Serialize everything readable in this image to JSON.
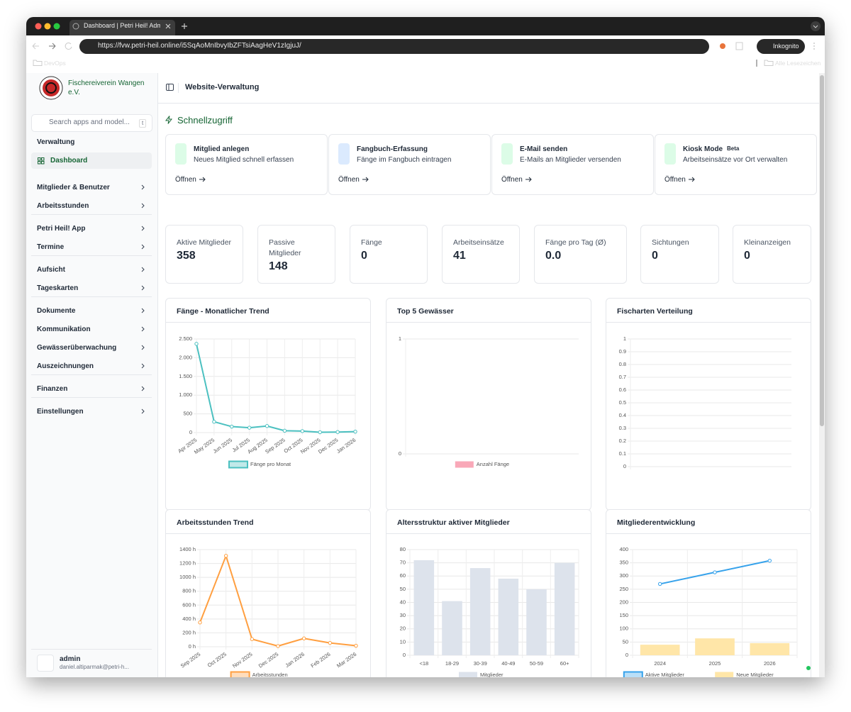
{
  "browser": {
    "tab_title": "Dashboard | Petri Heil! Admin",
    "url": "https://fvw.petri-heil.online/i5SqAoMnIbvyIbZFTsiAagHeV1zIgjuJ/",
    "incognito": "Inkognito",
    "bookmarks": [
      "DevOps"
    ],
    "all_bookmarks": "Alle Lesezeichen"
  },
  "sidebar": {
    "org_name": "Fischereiverein Wangen e.V.",
    "search_placeholder": "Search apps and model...",
    "search_shortcut": "t",
    "section": "Verwaltung",
    "active_item": "Dashboard",
    "groups": [
      [
        "Mitglieder & Benutzer",
        "Arbeitsstunden"
      ],
      [
        "Petri Heil! App",
        "Termine"
      ],
      [
        "Aufsicht",
        "Tageskarten"
      ],
      [
        "Dokumente",
        "Kommunikation",
        "Gewässerüberwachung",
        "Auszeichnungen"
      ],
      [
        "Finanzen"
      ],
      [
        "Einstellungen"
      ]
    ],
    "user": {
      "name": "admin",
      "email": "daniel.altiparmak@petri-h..."
    }
  },
  "header": {
    "title": "Website-Verwaltung"
  },
  "quick_access": {
    "title": "Schnellzugriff",
    "cards": [
      {
        "title": "Mitglied anlegen",
        "description": "Neues Mitglied schnell erfassen",
        "link": "Öffnen"
      },
      {
        "title": "Fangbuch-Erfassung",
        "description": "Fänge im Fangbuch eintragen",
        "link": "Öffnen"
      },
      {
        "title": "E-Mail senden",
        "description": "E-Mails an Mitglieder versenden",
        "link": "Öffnen"
      },
      {
        "title": "Kiosk Mode",
        "badge": "Beta",
        "description": "Arbeitseinsätze vor Ort verwalten",
        "link": "Öffnen"
      }
    ]
  },
  "stats": [
    {
      "label": "Aktive Mitglieder",
      "value": 358
    },
    {
      "label": "Passive Mitglieder",
      "value": 148
    },
    {
      "label": "Fänge",
      "value": 0
    },
    {
      "label": "Arbeitseinsätze",
      "value": 41
    },
    {
      "label": "Fänge pro Tag (Ø)",
      "value": "0.0"
    },
    {
      "label": "Sichtungen",
      "value": 0
    },
    {
      "label": "Kleinanzeigen",
      "value": 0
    }
  ],
  "chart_data": [
    {
      "type": "line",
      "title": "Fänge - Monatlicher Trend",
      "categories": [
        "Apr 2025",
        "May 2025",
        "Jun 2025",
        "Jul 2025",
        "Aug 2025",
        "Sep 2025",
        "Oct 2025",
        "Nov 2025",
        "Dec 2025",
        "Jan 2026"
      ],
      "series": [
        {
          "name": "Fänge pro Monat",
          "color": "#4bc0c0",
          "values": [
            2370,
            290,
            160,
            130,
            175,
            50,
            40,
            10,
            15,
            25
          ]
        }
      ],
      "ylim": [
        0,
        2500
      ],
      "yticks": [
        0,
        500,
        {
          "value": 1000,
          "label": "1.000"
        },
        {
          "value": 1500,
          "label": "1.500"
        },
        {
          "value": 2000,
          "label": "2.000"
        },
        {
          "value": 2500,
          "label": "2.500"
        }
      ],
      "grid": true
    },
    {
      "type": "bar",
      "title": "Top 5 Gewässer",
      "categories": [],
      "series": [
        {
          "name": "Anzahl Fänge",
          "color": "#f9a8b8",
          "values": []
        }
      ],
      "ylim": [
        0,
        1
      ],
      "yticks": [
        0,
        1
      ],
      "grid": true
    },
    {
      "type": "bar",
      "title": "Fischarten Verteilung",
      "categories": [],
      "series": [],
      "ylim": [
        0,
        1
      ],
      "yticks": [
        0,
        0.1,
        0.2,
        0.3,
        0.4,
        0.5,
        0.6,
        0.7,
        0.8,
        0.9,
        1
      ],
      "grid": true
    },
    {
      "type": "line",
      "title": "Arbeitsstunden Trend",
      "categories": [
        "Sep 2025",
        "Oct 2025",
        "Nov 2025",
        "Dec 2025",
        "Jan 2026",
        "Feb 2026",
        "Mar 2026"
      ],
      "series": [
        {
          "name": "Arbeitsstunden",
          "color": "#ff9f40",
          "values": [
            350,
            1310,
            110,
            10,
            120,
            55,
            15
          ]
        }
      ],
      "ylim": [
        0,
        1400
      ],
      "yticks": [
        {
          "value": 0,
          "label": "0 h"
        },
        {
          "value": 200,
          "label": "200 h"
        },
        {
          "value": 400,
          "label": "400 h"
        },
        {
          "value": 600,
          "label": "600 h"
        },
        {
          "value": 800,
          "label": "800 h"
        },
        {
          "value": 1000,
          "label": "1000 h"
        },
        {
          "value": 1200,
          "label": "1200 h"
        },
        {
          "value": 1400,
          "label": "1400 h"
        }
      ],
      "grid": true
    },
    {
      "type": "bar",
      "title": "Altersstruktur aktiver Mitglieder",
      "categories": [
        "<18",
        "18-29",
        "30-39",
        "40-49",
        "50-59",
        "60+"
      ],
      "series": [
        {
          "name": "Mitglieder",
          "color": "#dde3ec",
          "values": [
            72,
            41,
            66,
            58,
            50,
            70
          ]
        }
      ],
      "ylim": [
        0,
        80
      ],
      "yticks": [
        0,
        10,
        20,
        30,
        40,
        50,
        60,
        70,
        80
      ],
      "grid": true
    },
    {
      "type": "combo",
      "title": "Mitgliederentwicklung",
      "categories": [
        "2024",
        "2025",
        "2026"
      ],
      "series": [
        {
          "name": "Aktive Mitglieder",
          "type": "line",
          "color": "#36a2eb",
          "values": [
            270,
            314,
            358
          ]
        },
        {
          "name": "Neue Mitglieder",
          "type": "bar",
          "color": "#ffe6a8",
          "values": [
            40,
            64,
            46
          ]
        }
      ],
      "ylim": [
        0,
        400
      ],
      "yticks": [
        0,
        50,
        100,
        150,
        200,
        250,
        300,
        350,
        400
      ],
      "grid": true
    }
  ]
}
